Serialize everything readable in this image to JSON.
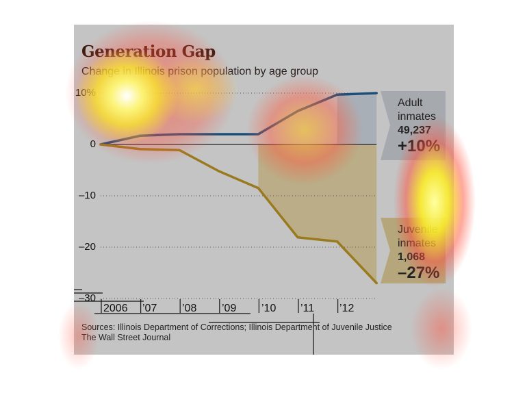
{
  "chart_data": {
    "type": "line",
    "title": "Generation Gap",
    "subtitle": "Change in Illinois prison population by age group",
    "x": [
      2006,
      2007,
      2008,
      2009,
      2010,
      2011,
      2012,
      2013
    ],
    "xtick_labels": [
      "2006",
      "’07",
      "’08",
      "’09",
      "’10",
      "’11",
      "’12"
    ],
    "ytick_labels": [
      "10%",
      "0",
      "–10",
      "–20",
      "–30"
    ],
    "yticks": [
      10,
      0,
      -10,
      -20,
      -30
    ],
    "ylim": [
      -30,
      10
    ],
    "grid": "dotted horizontal",
    "series": [
      {
        "name": "Adult inmates",
        "color": "#1d4e78",
        "values": [
          0,
          1.7,
          2,
          2,
          2,
          6.5,
          9.7,
          10
        ]
      },
      {
        "name": "Juvenile inmates",
        "color": "#9a7a1e",
        "values": [
          0,
          -0.9,
          -1.1,
          -5.2,
          -8.5,
          -18.1,
          -18.9,
          -27
        ]
      }
    ],
    "labels": {
      "adult": {
        "line1": "Adult",
        "line2": "inmates",
        "count": "49,237",
        "change": "+10%"
      },
      "juvenile": {
        "line1": "Juvenile",
        "line2": "inmates",
        "count": "1,068",
        "change": "–27%"
      }
    },
    "sources": "Sources: Illinois Department of Corrections; Illinois Department of Juvenile Justice",
    "credit": "The Wall Street Journal"
  }
}
